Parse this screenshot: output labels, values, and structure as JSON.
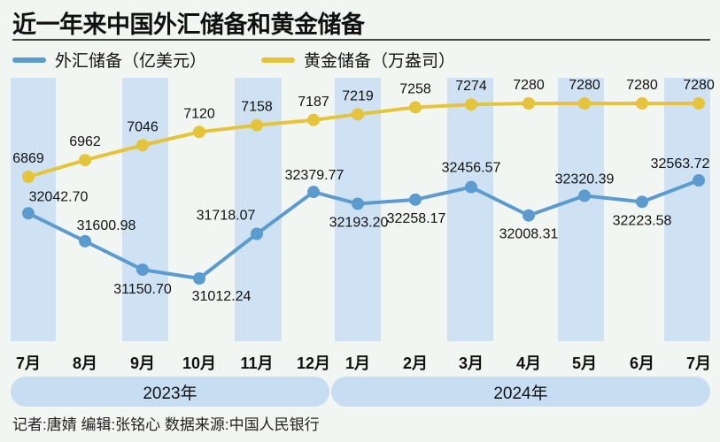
{
  "chart_data": {
    "type": "line",
    "title": "近一年来中国外汇储备和黄金储备",
    "categories": [
      "7月",
      "8月",
      "9月",
      "10月",
      "11月",
      "12月",
      "1月",
      "2月",
      "3月",
      "4月",
      "5月",
      "6月",
      "7月"
    ],
    "year_groups": [
      {
        "label": "2023年",
        "months": 6
      },
      {
        "label": "2024年",
        "months": 7
      }
    ],
    "series": [
      {
        "name": "外汇储备（亿美元）",
        "color": "#5b9bd0",
        "values": [
          32042.7,
          31600.98,
          31150.7,
          31012.24,
          31718.07,
          32379.77,
          32193.2,
          32258.17,
          32456.57,
          32008.31,
          32320.39,
          32223.58,
          32563.72
        ],
        "labels": [
          "32042.70",
          "31600.98",
          "31150.70",
          "31012.24",
          "31718.07",
          "32379.77",
          "32193.20",
          "32258.17",
          "32456.57",
          "32008.31",
          "32320.39",
          "32223.58",
          "32563.72"
        ]
      },
      {
        "name": "黄金储备（万盎司）",
        "color": "#e6c43a",
        "values": [
          6869,
          6962,
          7046,
          7120,
          7158,
          7187,
          7219,
          7258,
          7274,
          7280,
          7280,
          7280,
          7280
        ],
        "labels": [
          "6869",
          "6962",
          "7046",
          "7120",
          "7158",
          "7187",
          "7219",
          "7258",
          "7274",
          "7280",
          "7280",
          "7280",
          "7280"
        ]
      }
    ],
    "grid": false,
    "legend_position": "top-left",
    "stripe_color": "#cfe2f3"
  },
  "footer": "记者:唐婧   编辑:张铭心   数据来源:中国人民银行"
}
